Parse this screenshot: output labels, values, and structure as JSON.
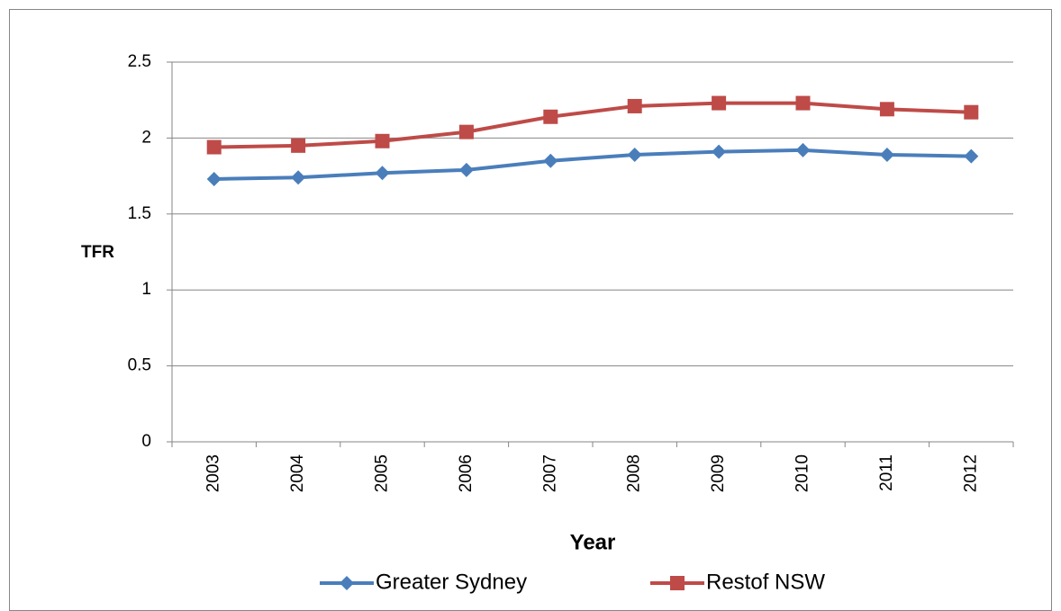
{
  "chart_data": {
    "type": "line",
    "x_label": "Year",
    "y_label": "TFR",
    "categories": [
      "2003",
      "2004",
      "2005",
      "2006",
      "2007",
      "2008",
      "2009",
      "2010",
      "2011",
      "2012"
    ],
    "series": [
      {
        "name": "Greater Sydney",
        "color": "#4a7ebb",
        "marker": "diamond",
        "values": [
          1.73,
          1.74,
          1.77,
          1.79,
          1.85,
          1.89,
          1.91,
          1.92,
          1.89,
          1.88
        ]
      },
      {
        "name": "Restof NSW",
        "color": "#be4b48",
        "marker": "square",
        "values": [
          1.94,
          1.95,
          1.98,
          2.04,
          2.14,
          2.21,
          2.23,
          2.23,
          2.19,
          2.17
        ]
      }
    ],
    "ylim": [
      0,
      2.5
    ],
    "yticks": [
      0,
      0.5,
      1,
      1.5,
      2,
      2.5
    ],
    "grid": true,
    "legend": "bottom"
  }
}
